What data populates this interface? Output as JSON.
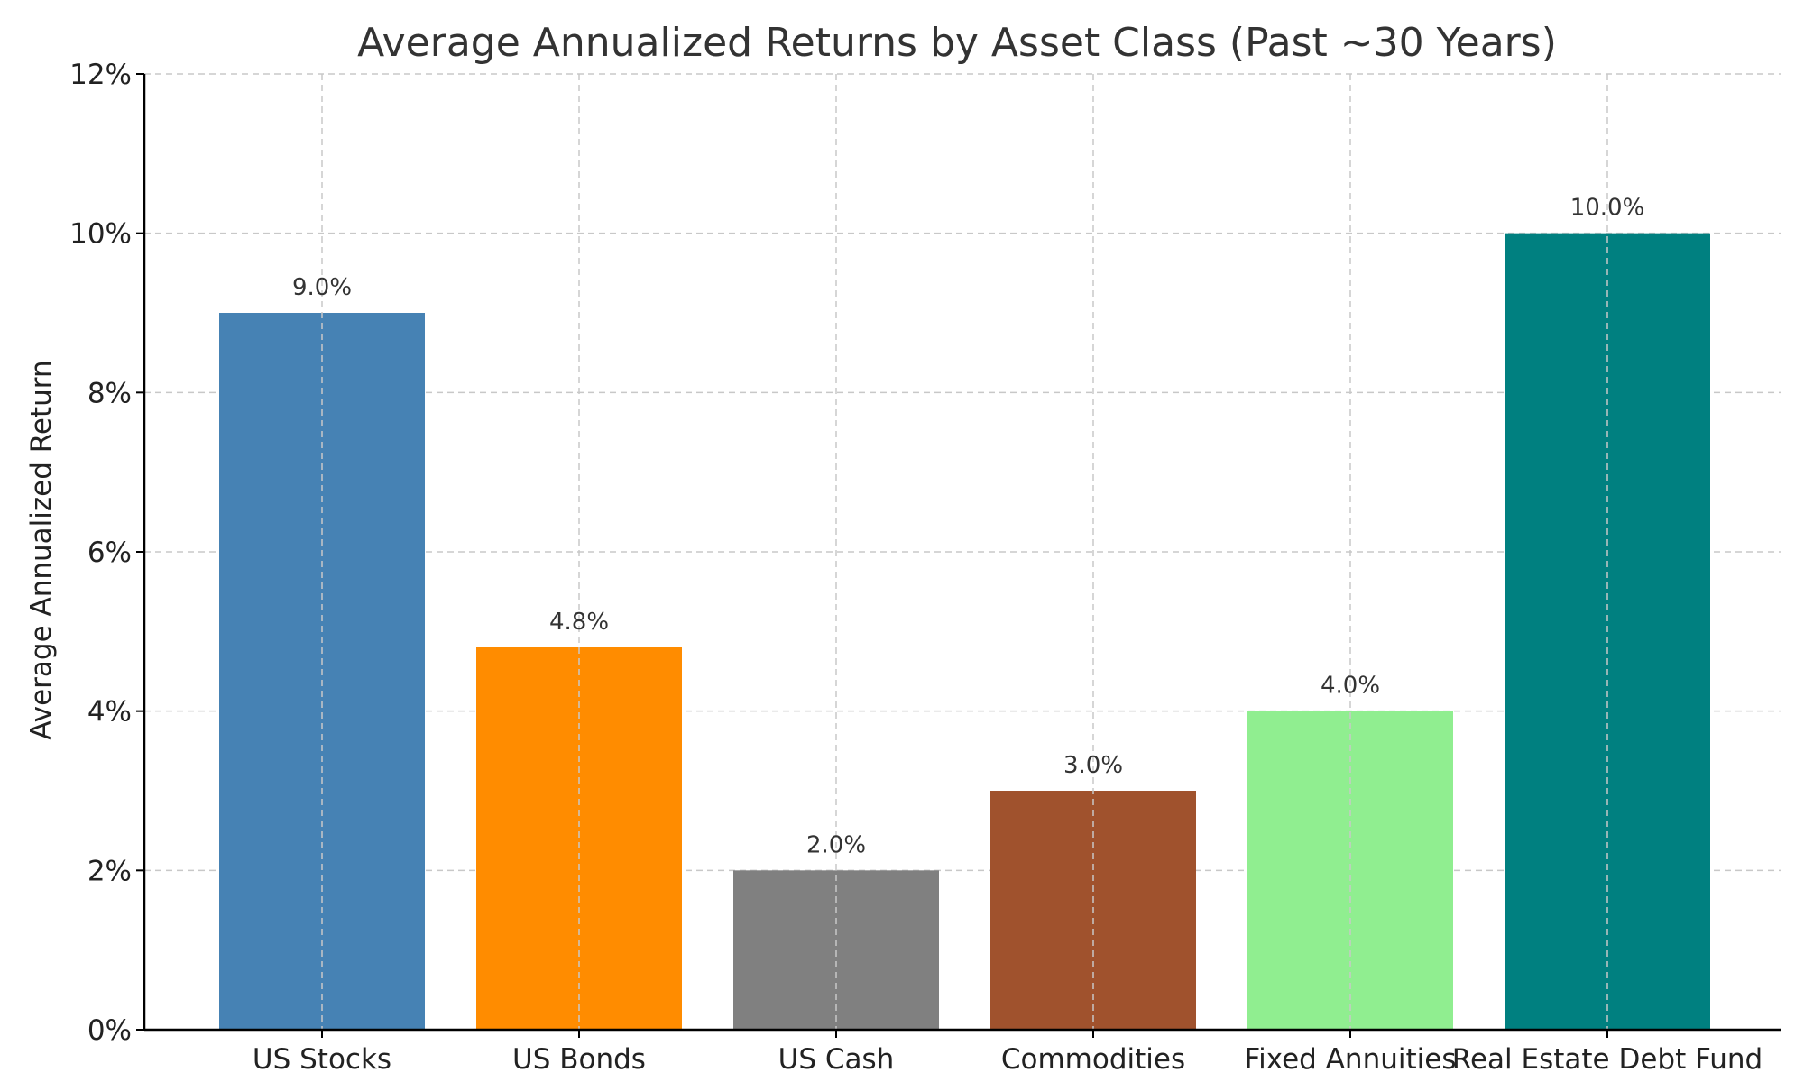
{
  "chart_data": {
    "type": "bar",
    "title": "Average Annualized Returns by Asset Class (Past ~30 Years)",
    "xlabel": "",
    "ylabel": "Average Annualized Return",
    "categories": [
      "US Stocks",
      "US Bonds",
      "US Cash",
      "Commodities",
      "Fixed Annuities",
      "Real Estate Debt Fund"
    ],
    "values": [
      9.0,
      4.8,
      2.0,
      3.0,
      4.0,
      10.0
    ],
    "value_labels": [
      "9.0%",
      "4.8%",
      "2.0%",
      "3.0%",
      "4.0%",
      "10.0%"
    ],
    "colors": [
      "#4682b4",
      "#ff8c00",
      "#808080",
      "#a0522d",
      "#90ee90",
      "#008080"
    ],
    "ylim": [
      0,
      12
    ],
    "yticks": [
      0,
      2,
      4,
      6,
      8,
      10,
      12
    ],
    "ytick_labels": [
      "0%",
      "2%",
      "4%",
      "6%",
      "8%",
      "10%",
      "12%"
    ],
    "grid": true
  }
}
